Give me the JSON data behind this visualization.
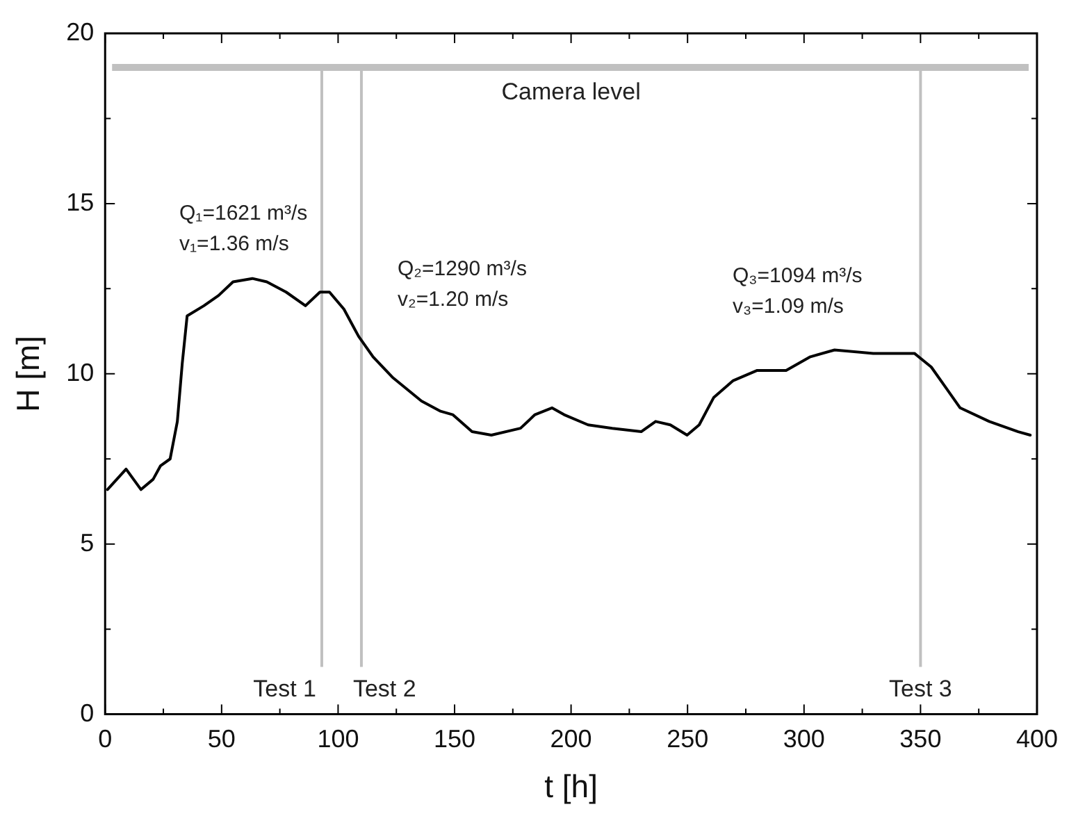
{
  "chart_data": {
    "type": "line",
    "xlabel": "t [h]",
    "ylabel": "H [m]",
    "series": [
      {
        "color": "#000000",
        "x": [
          1,
          9,
          15.4,
          20.6,
          23.8,
          27.9,
          31,
          33.1,
          35.2,
          42.4,
          48.7,
          54.9,
          63.2,
          69.4,
          77.7,
          86,
          92.2,
          96.3,
          102.5,
          108.8,
          115,
          123.3,
          135.8,
          144,
          149.2,
          157.5,
          165.8,
          178.3,
          184.5,
          191.8,
          197,
          207.3,
          217.7,
          230.1,
          236.3,
          242.6,
          249.8,
          255,
          261.2,
          269.6,
          279.9,
          292.3,
          302.7,
          313.1,
          329.7,
          347.4,
          354.6,
          360.8,
          367,
          379.5,
          391.9,
          397.1
        ],
        "values": [
          6.6,
          7.2,
          6.6,
          6.9,
          7.3,
          7.5,
          8.6,
          10.3,
          11.7,
          12,
          12.3,
          12.7,
          12.8,
          12.7,
          12.4,
          12,
          12.4,
          12.4,
          11.9,
          11.1,
          10.5,
          9.9,
          9.2,
          8.9,
          8.8,
          8.3,
          8.2,
          8.4,
          8.8,
          9,
          8.8,
          8.5,
          8.4,
          8.3,
          8.6,
          8.5,
          8.2,
          8.5,
          9.3,
          9.8,
          10.1,
          10.1,
          10.5,
          10.7,
          10.6,
          10.6,
          10.2,
          9.6,
          9,
          8.6,
          8.3,
          8.2
        ]
      }
    ],
    "xlim": [
      0,
      400
    ],
    "ylim": [
      0,
      20
    ],
    "xticks": [
      0,
      {
        "value": 25,
        "label": null
      },
      50,
      {
        "value": 75,
        "label": null
      },
      100,
      {
        "value": 125,
        "label": null
      },
      150,
      {
        "value": 175,
        "label": null
      },
      200,
      {
        "value": 225,
        "label": null
      },
      250,
      {
        "value": 275,
        "label": null
      },
      300,
      {
        "value": 325,
        "label": null
      },
      350,
      {
        "value": 375,
        "label": null
      },
      400
    ],
    "yticks": [
      0,
      {
        "value": 2.5,
        "label": null
      },
      5,
      {
        "value": 7.5,
        "label": null
      },
      10,
      {
        "value": 12.5,
        "label": null
      },
      15,
      {
        "value": 17.5,
        "label": null
      },
      20
    ],
    "ref_lines": [
      {
        "axis": "y",
        "value": 19,
        "label": "Camera level",
        "color": "#c0c0c0"
      },
      {
        "axis": "x",
        "value": 93,
        "label": "Test 1",
        "color": "#c0c0c0"
      },
      {
        "axis": "x",
        "value": 110,
        "label": "Test 2",
        "color": "#c0c0c0"
      },
      {
        "axis": "x",
        "value": 350,
        "label": "Test 3",
        "color": "#c0c0c0"
      }
    ],
    "annotations": [
      "Q₁=1621 m³/s\nv₁=1.36 m/s",
      "Q₂=1290 m³/s\nv₂=1.20 m/s",
      "Q₃=1094 m³/s\nv₃=1.09 m/s"
    ],
    "grid": false,
    "legend": false,
    "marker": "none",
    "line_style": "solid"
  }
}
